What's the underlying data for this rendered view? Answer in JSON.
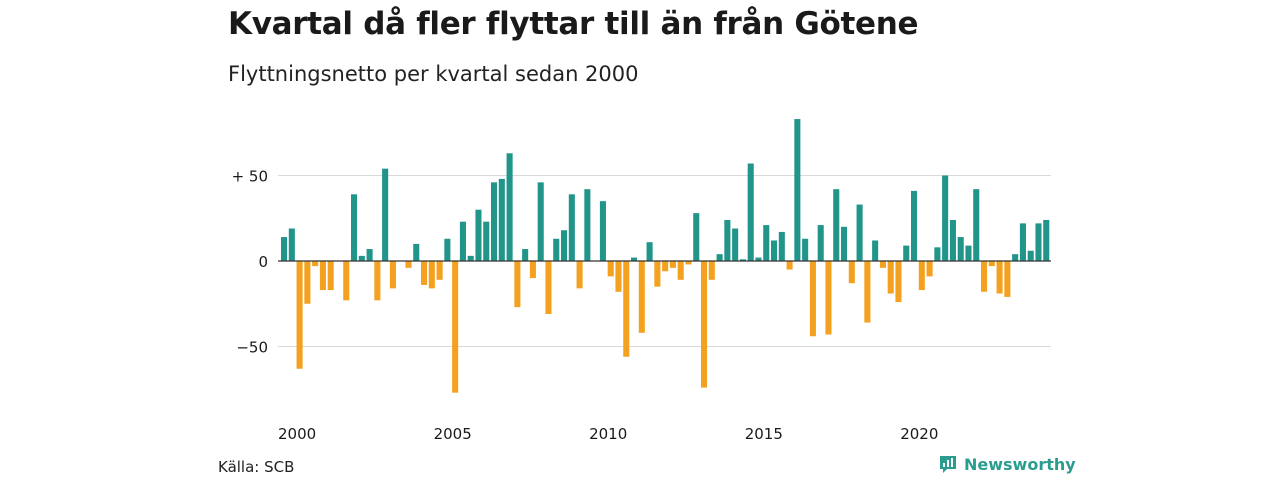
{
  "header": {
    "title": "Kvartal då fler flyttar till än från Götene",
    "subtitle": "Flyttningsnetto per kvartal sedan 2000"
  },
  "footer": {
    "source": "Källa: SCB",
    "brand": "Newsworthy"
  },
  "colors": {
    "positive": "#21958a",
    "negative": "#f4a11f",
    "grid": "#d9d9d9",
    "text": "#1a1a1a",
    "brand": "#2a9d8f"
  },
  "chart_data": {
    "type": "bar",
    "title": "Kvartal då fler flyttar till än från Götene",
    "subtitle": "Flyttningsnetto per kvartal sedan 2000",
    "xlabel": "",
    "ylabel": "",
    "ylim": [
      -85,
      85
    ],
    "grid": true,
    "y_ticks": [
      {
        "value": 50,
        "label": "+ 50"
      },
      {
        "value": 0,
        "label": "0"
      },
      {
        "value": -50,
        "label": "−50"
      }
    ],
    "x_ticks": [
      {
        "quarter_index": 0,
        "label": "2000"
      },
      {
        "quarter_index": 20,
        "label": "2005"
      },
      {
        "quarter_index": 40,
        "label": "2010"
      },
      {
        "quarter_index": 60,
        "label": "2015"
      },
      {
        "quarter_index": 80,
        "label": "2020"
      }
    ],
    "start": "2000Q1",
    "series": [
      {
        "values": [
          14,
          19,
          -63,
          -25,
          -3,
          -17,
          -17,
          0,
          -23,
          39,
          3,
          7,
          -23,
          54,
          -16,
          0,
          -4,
          10,
          -14,
          -16,
          -11,
          13,
          -77,
          23,
          3,
          30,
          23,
          46,
          48,
          63,
          -27,
          7,
          -10,
          46,
          -31,
          13,
          18,
          39,
          -16,
          42,
          0,
          35,
          -9,
          -18,
          -56,
          2,
          -42,
          11,
          -15,
          -6,
          -4,
          -11,
          -2,
          28,
          -74,
          -11,
          4,
          24,
          19,
          1,
          57,
          2,
          21,
          12,
          17,
          -5,
          83,
          13,
          -44,
          21,
          -43,
          42,
          20,
          -13,
          33,
          -36,
          12,
          -4,
          -19,
          -24,
          9,
          41,
          -17,
          -9,
          8,
          50,
          24,
          14,
          9,
          42,
          -18,
          -3,
          -19,
          -21,
          4,
          22,
          6,
          22,
          24
        ]
      }
    ]
  }
}
